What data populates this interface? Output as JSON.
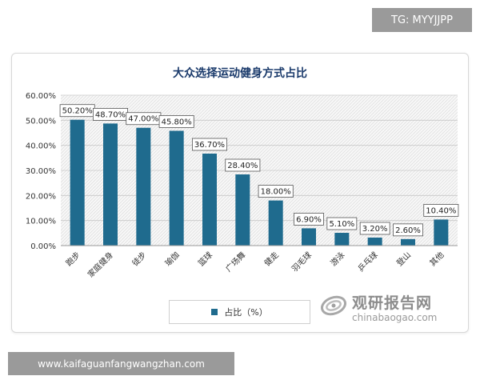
{
  "watermark_top": "TG: MYYJJPP",
  "watermark_bottom": "www.kaifaguanfangwangzhan.com",
  "logo": {
    "cn": "观研报告网",
    "en": "chinabaogao.com"
  },
  "colors": {
    "bar": "#1f6b8e",
    "grid": "#c8c8c8",
    "badge": "#9a9a9a"
  },
  "chart_data": {
    "type": "bar",
    "title": "大众选择运动健身方式占比",
    "categories": [
      "跑步",
      "家庭健身",
      "徒步",
      "瑜伽",
      "篮球",
      "广场舞",
      "健走",
      "羽毛球",
      "游泳",
      "乒乓球",
      "登山",
      "其他"
    ],
    "series": [
      {
        "name": "占比（%）",
        "values": [
          50.2,
          48.7,
          47.0,
          45.8,
          36.7,
          28.4,
          18.0,
          6.9,
          5.1,
          3.2,
          2.6,
          10.4
        ]
      }
    ],
    "data_labels": [
      "50.20%",
      "48.70%",
      "47.00%",
      "45.80%",
      "36.70%",
      "28.40%",
      "18.00%",
      "6.90%",
      "5.10%",
      "3.20%",
      "2.60%",
      "10.40%"
    ],
    "y_ticks": [
      "0.00%",
      "10.00%",
      "20.00%",
      "30.00%",
      "40.00%",
      "50.00%",
      "60.00%"
    ],
    "ylim": [
      0,
      60
    ],
    "grid": true,
    "legend_position": "bottom"
  }
}
